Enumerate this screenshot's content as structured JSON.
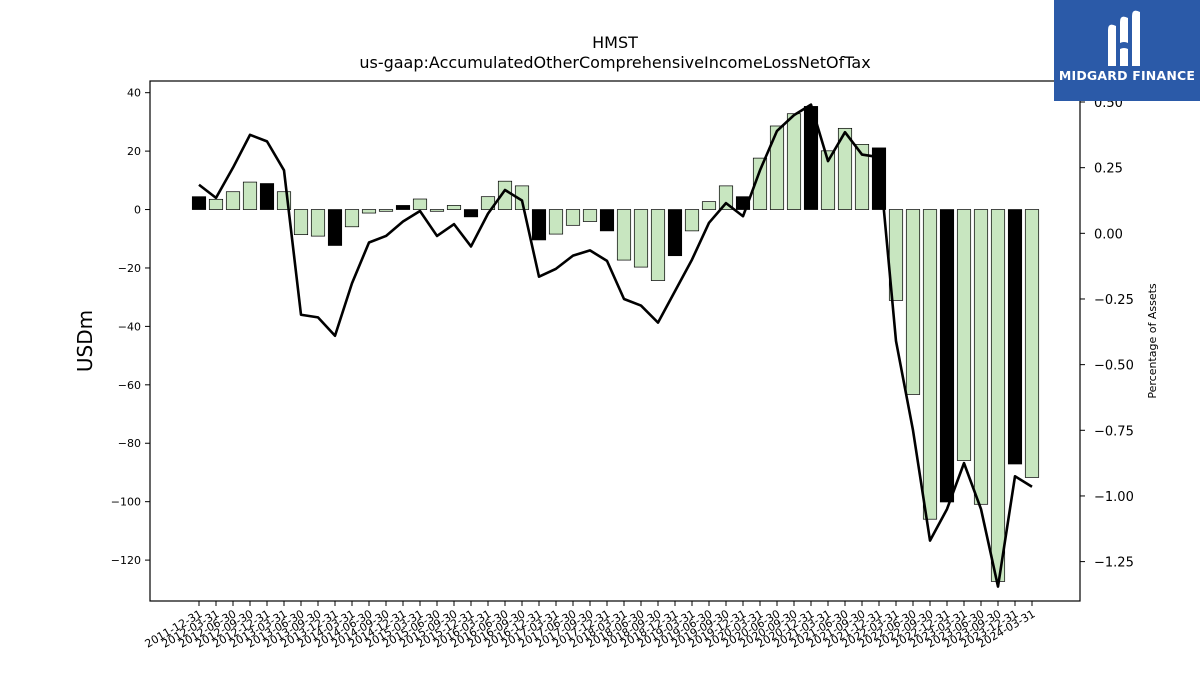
{
  "logo": {
    "name": "MIDGARD FINANCE",
    "color": "#2b5aa8"
  },
  "chart_data": {
    "type": "bar",
    "title": "HMST",
    "subtitle": "us-gaap:AccumulatedOtherComprehensiveIncomeLossNetOfTax",
    "ylabel": "USDm",
    "y2label": "Percentage of Assets",
    "ylim": [
      -134,
      44
    ],
    "y2lim": [
      -1.4,
      0.58
    ],
    "yticks": [
      40,
      20,
      0,
      -20,
      -40,
      -60,
      -80,
      -100,
      -120
    ],
    "y2ticks": [
      0.5,
      0.25,
      0.0,
      -0.25,
      -0.5,
      -0.75,
      -1.0,
      -1.25
    ],
    "y2tick_labels": [
      "0.50",
      "0.25",
      "0.00",
      "−0.25",
      "−0.50",
      "−0.75",
      "−1.00",
      "−1.25"
    ],
    "bar_colors": {
      "q4": "#000000",
      "other": "#c8e6c0"
    },
    "line_color": "#000000",
    "categories": [
      "2011-12-31",
      "2012-03-31",
      "2012-06-30",
      "2012-09-30",
      "2012-12-31",
      "2013-03-31",
      "2013-06-30",
      "2013-09-30",
      "2013-12-31",
      "2014-03-31",
      "2014-06-30",
      "2014-09-30",
      "2014-12-31",
      "2015-03-31",
      "2015-06-30",
      "2015-09-30",
      "2015-12-31",
      "2016-03-31",
      "2016-06-30",
      "2016-09-30",
      "2016-12-31",
      "2017-03-31",
      "2017-06-30",
      "2017-09-30",
      "2017-12-31",
      "2018-03-31",
      "2018-06-30",
      "2018-09-30",
      "2018-12-31",
      "2019-03-31",
      "2019-06-30",
      "2019-09-30",
      "2019-12-31",
      "2020-03-31",
      "2020-06-30",
      "2020-09-30",
      "2020-12-31",
      "2021-03-31",
      "2021-06-30",
      "2021-09-30",
      "2021-12-31",
      "2022-03-31",
      "2022-06-30",
      "2022-09-30",
      "2022-12-31",
      "2023-03-31",
      "2023-06-30",
      "2023-09-30",
      "2023-12-31",
      "2024-03-31"
    ],
    "series": [
      {
        "type": "bar",
        "axis": "left",
        "values": [
          4.4,
          3.5,
          6.1,
          9.4,
          8.9,
          6.1,
          -8.6,
          -9.1,
          -12.3,
          -5.9,
          -1.2,
          -0.6,
          1.4,
          3.6,
          -0.6,
          1.4,
          -2.5,
          4.4,
          9.7,
          8.1,
          -10.4,
          -8.4,
          -5.4,
          -4.1,
          -7.3,
          -17.3,
          -19.7,
          -24.3,
          -15.8,
          -7.3,
          2.7,
          8.1,
          4.4,
          17.6,
          28.6,
          32.8,
          35.3,
          20.1,
          27.8,
          22.3,
          21.1,
          -31.1,
          -63.3,
          -106,
          -100.1,
          -85.9,
          -100.9,
          -127.3,
          -87.1,
          -91.7
        ]
      },
      {
        "type": "line",
        "axis": "right",
        "values": [
          0.185,
          0.135,
          0.25,
          0.375,
          0.35,
          0.24,
          -0.31,
          -0.32,
          -0.39,
          -0.19,
          -0.035,
          -0.01,
          0.045,
          0.085,
          -0.01,
          0.035,
          -0.05,
          0.075,
          0.165,
          0.125,
          -0.165,
          -0.135,
          -0.085,
          -0.065,
          -0.105,
          -0.25,
          -0.275,
          -0.34,
          -0.22,
          -0.1,
          0.04,
          0.115,
          0.065,
          0.24,
          0.39,
          0.45,
          0.49,
          0.275,
          0.385,
          0.3,
          0.29,
          -0.41,
          -0.75,
          -1.17,
          -1.05,
          -0.875,
          -1.05,
          -1.345,
          -0.925,
          -0.965
        ]
      }
    ]
  }
}
